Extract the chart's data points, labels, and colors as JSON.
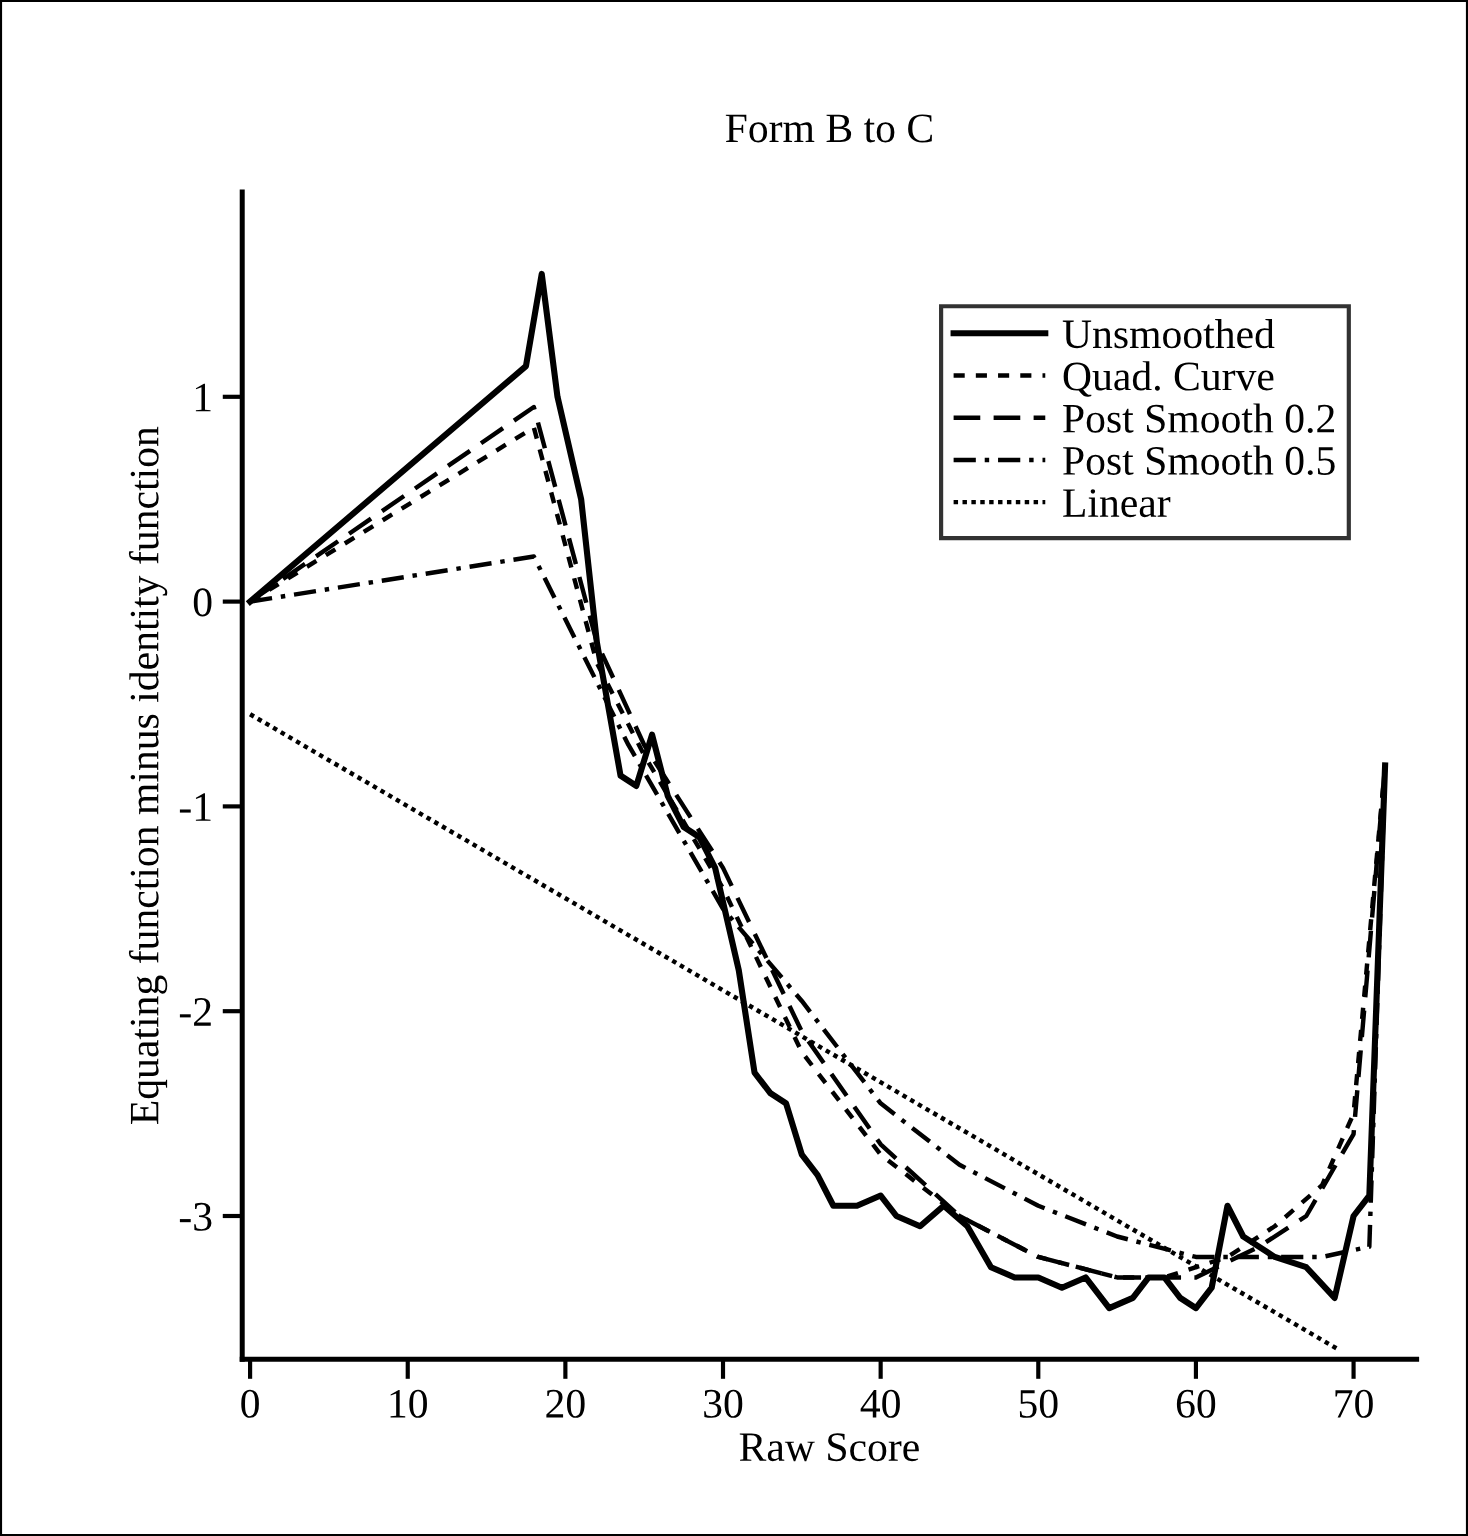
{
  "chart_data": {
    "type": "line",
    "title": "Form B to C",
    "xlabel": "Raw Score",
    "ylabel": "Equating function minus identity function",
    "xlim": [
      -0.5,
      74
    ],
    "ylim": [
      -3.7,
      2.0
    ],
    "xticks": [
      0,
      10,
      20,
      30,
      40,
      50,
      60,
      70
    ],
    "yticks": [
      -3,
      -2,
      -1,
      0,
      1
    ],
    "grid": false,
    "legend": "top right",
    "marker": "none",
    "series": [
      {
        "name": "Unsmoothed",
        "color": "#000000",
        "line_style": "solid",
        "x": [
          0,
          17.5,
          18.5,
          19.5,
          21,
          22,
          23.5,
          24.5,
          25.5,
          26.5,
          27.5,
          28.5,
          29.5,
          31,
          32,
          33,
          34,
          35,
          36,
          37,
          38.5,
          40,
          41,
          42.5,
          44,
          45.5,
          47,
          48.5,
          50,
          51.5,
          53,
          54.5,
          56,
          57,
          58,
          59,
          60,
          61,
          62,
          63,
          65,
          67,
          68.8,
          70,
          71,
          72
        ],
        "values": [
          0,
          1.15,
          1.6,
          1.0,
          0.5,
          -0.2,
          -0.85,
          -0.9,
          -0.65,
          -0.95,
          -1.1,
          -1.15,
          -1.3,
          -1.8,
          -2.3,
          -2.4,
          -2.45,
          -2.7,
          -2.8,
          -2.95,
          -2.95,
          -2.9,
          -3.0,
          -3.05,
          -2.95,
          -3.05,
          -3.25,
          -3.3,
          -3.3,
          -3.35,
          -3.3,
          -3.45,
          -3.4,
          -3.3,
          -3.3,
          -3.4,
          -3.45,
          -3.35,
          -2.95,
          -3.1,
          -3.2,
          -3.25,
          -3.4,
          -3.0,
          -2.9,
          -0.8
        ]
      },
      {
        "name": "Quad. Curve",
        "color": "#000000",
        "line_style": "short dashed",
        "x": [
          0,
          18,
          22,
          25,
          30,
          35,
          40,
          45,
          50,
          55,
          58,
          62,
          65,
          68,
          70,
          72
        ],
        "values": [
          0,
          0.85,
          -0.3,
          -0.75,
          -1.4,
          -2.2,
          -2.7,
          -3.0,
          -3.2,
          -3.3,
          -3.3,
          -3.2,
          -3.05,
          -2.85,
          -2.5,
          -0.8
        ]
      },
      {
        "name": "Post Smooth 0.2",
        "color": "#000000",
        "line_style": "dashed",
        "x": [
          0,
          18,
          22,
          25,
          30,
          35,
          40,
          45,
          50,
          55,
          60,
          64,
          67,
          70,
          72
        ],
        "values": [
          0,
          0.95,
          -0.2,
          -0.7,
          -1.3,
          -2.1,
          -2.65,
          -3.0,
          -3.2,
          -3.3,
          -3.3,
          -3.15,
          -3.0,
          -2.6,
          -0.8
        ]
      },
      {
        "name": "Post Smooth 0.5",
        "color": "#000000",
        "line_style": "dashdot",
        "x": [
          0,
          18,
          24,
          30,
          35,
          40,
          45,
          50,
          55,
          60,
          65,
          68,
          71,
          72
        ],
        "values": [
          0,
          0.22,
          -0.7,
          -1.5,
          -1.95,
          -2.45,
          -2.75,
          -2.95,
          -3.1,
          -3.2,
          -3.2,
          -3.2,
          -3.15,
          -0.8
        ]
      },
      {
        "name": "Linear",
        "color": "#000000",
        "line_style": "dotted",
        "x": [
          0,
          69
        ],
        "values": [
          -0.55,
          -3.65
        ]
      }
    ]
  }
}
